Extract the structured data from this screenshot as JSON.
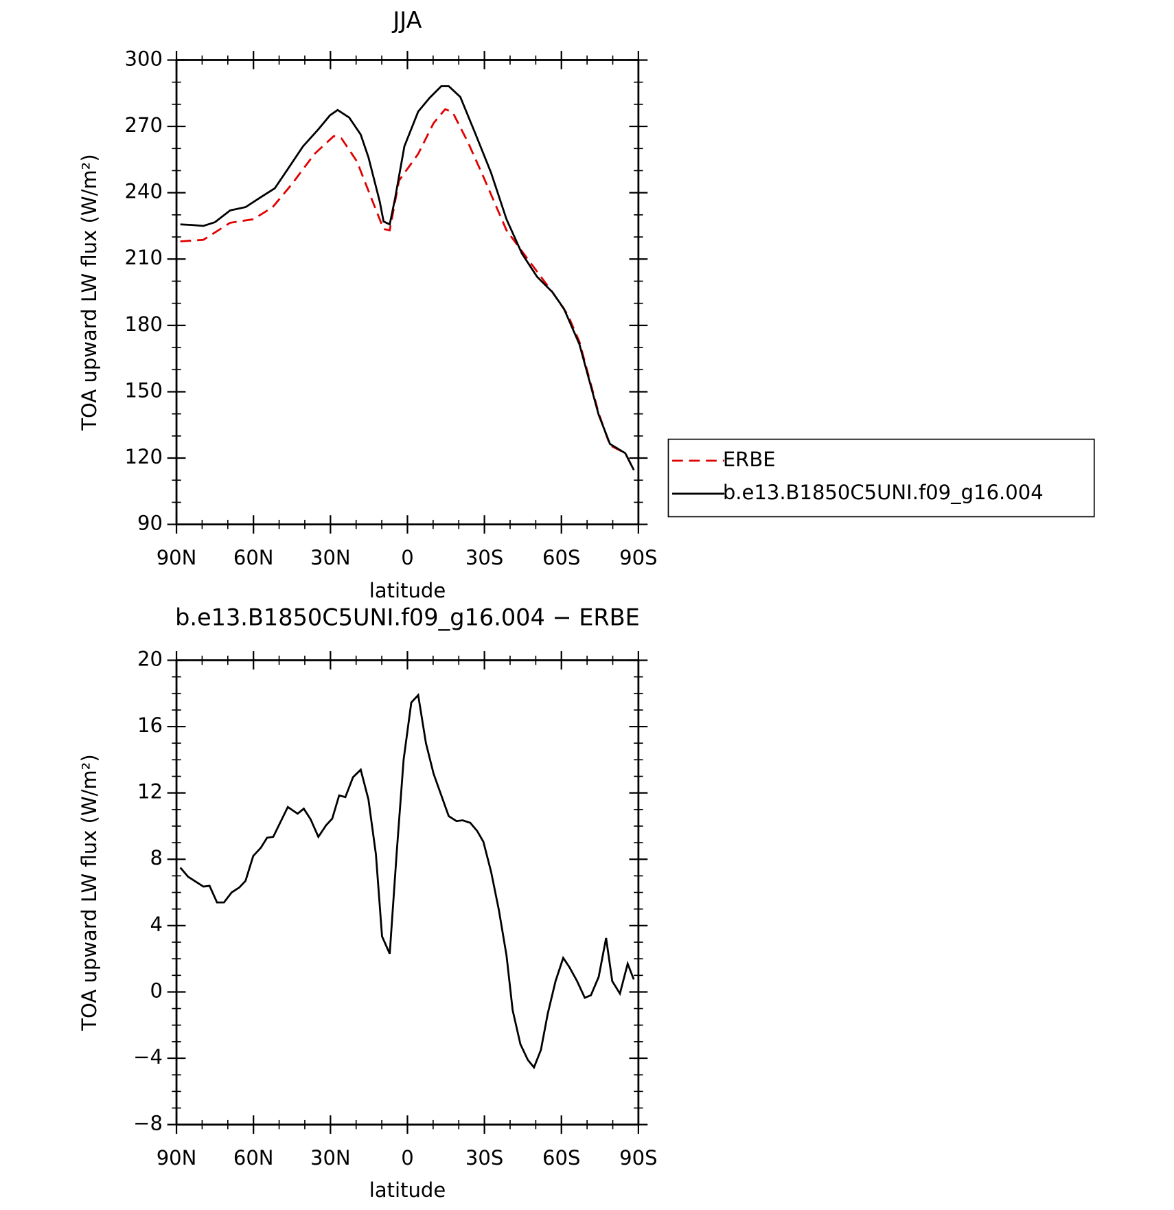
{
  "chart_data": [
    {
      "type": "line",
      "title": "JJA",
      "xlabel": "latitude",
      "ylabel": "TOA upward LW flux (W/m²)",
      "xlim": [
        90,
        -90
      ],
      "xticks": [
        {
          "value": 90,
          "label": "90N"
        },
        {
          "value": 60,
          "label": "60N"
        },
        {
          "value": 30,
          "label": "30N"
        },
        0,
        {
          "value": -30,
          "label": "30S"
        },
        {
          "value": -60,
          "label": "60S"
        },
        {
          "value": -90,
          "label": "90S"
        }
      ],
      "ylim": [
        90,
        300
      ],
      "yticks": [
        90,
        120,
        150,
        180,
        210,
        240,
        270,
        300
      ],
      "legend": true,
      "series": [
        {
          "name": "ERBE",
          "color": "#e00000",
          "dashed": true,
          "x": [
            88.5,
            79.5,
            69.1,
            60.1,
            52.6,
            45.1,
            36.2,
            28.7,
            25.7,
            19.7,
            13.8,
            9.3,
            6.9,
            3.3,
            -4.2,
            -10.2,
            -14.7,
            -17.6,
            -23.6,
            -29.6,
            -38.6,
            -47.5,
            -56.5,
            -62.5,
            -67,
            -74.5,
            -78.9,
            -84.9,
            -88.2
          ],
          "values": [
            218,
            218.7,
            226.4,
            228,
            233.4,
            243.8,
            257.6,
            265.6,
            264.6,
            254.2,
            236.8,
            223.6,
            223,
            245.5,
            257.6,
            271.5,
            277.8,
            276.4,
            262.8,
            247.2,
            223,
            209,
            195,
            184.8,
            172.6,
            140.3,
            125.8,
            122.2,
            114.6
          ]
        },
        {
          "name": "b.e13.B1850C5UNI.f09_g16.004",
          "color": "#000000",
          "dashed": false,
          "x": [
            88.5,
            84,
            79.5,
            75,
            69.1,
            63.1,
            57.1,
            51.7,
            46.6,
            40.7,
            34.7,
            30.2,
            27.2,
            22.7,
            18.2,
            15.2,
            10.8,
            9.3,
            6.9,
            4.8,
            1.2,
            -4.2,
            -8.7,
            -13.2,
            -16.1,
            -20.6,
            -26.6,
            -32.6,
            -38.6,
            -44.6,
            -50.5,
            -56.5,
            -61,
            -67,
            -74.5,
            -78.9,
            -84.9,
            -88.2
          ],
          "values": [
            225.7,
            225.4,
            225,
            226.7,
            232,
            233.5,
            238,
            242,
            250.7,
            261,
            268.7,
            275,
            277.4,
            274,
            266.3,
            256,
            236,
            227,
            225.7,
            237.5,
            261,
            276.7,
            283,
            288.2,
            288.2,
            283.3,
            266.3,
            249,
            228,
            212.5,
            202,
            195,
            187.5,
            171.5,
            139.6,
            126.4,
            122.2,
            114.6
          ]
        }
      ]
    },
    {
      "type": "line",
      "title": "b.e13.B1850C5UNI.f09_g16.004 − ERBE",
      "xlabel": "latitude",
      "ylabel": "TOA upward LW flux (W/m²)",
      "xlim": [
        90,
        -90
      ],
      "xticks": [
        {
          "value": 90,
          "label": "90N"
        },
        {
          "value": 60,
          "label": "60N"
        },
        {
          "value": 30,
          "label": "30N"
        },
        0,
        {
          "value": -30,
          "label": "30S"
        },
        {
          "value": -60,
          "label": "60S"
        },
        {
          "value": -90,
          "label": "90S"
        }
      ],
      "ylim": [
        -8,
        20
      ],
      "yticks": [
        {
          "value": -8,
          "label": "−8"
        },
        {
          "value": -4,
          "label": "−4"
        },
        0,
        4,
        8,
        12,
        16,
        20
      ],
      "series": [
        {
          "color": "#000000",
          "dashed": false,
          "x": [
            88.5,
            85.5,
            79.5,
            77.1,
            74.2,
            71.5,
            68.5,
            65.5,
            63.1,
            60.1,
            57.1,
            54.7,
            52.3,
            46.6,
            42.8,
            40.4,
            37.7,
            34.7,
            31.7,
            29.3,
            26.6,
            24.2,
            21.2,
            18.2,
            15.2,
            12.3,
            9.9,
            6.9,
            4.2,
            1.5,
            -1.5,
            -4.2,
            -7.2,
            -10.2,
            -16.1,
            -19.1,
            -21.5,
            -24.5,
            -27.2,
            -29.6,
            -32.6,
            -35.6,
            -38.6,
            -41,
            -44,
            -46.9,
            -49.3,
            -52,
            -54.7,
            -57.7,
            -60.7,
            -63.1,
            -66.1,
            -69.1,
            -71.5,
            -74.5,
            -77.4,
            -79.8,
            -82.8,
            -85.8,
            -88.2
          ],
          "values": [
            7.5,
            6.95,
            6.35,
            6.4,
            5.4,
            5.4,
            6.0,
            6.3,
            6.7,
            8.2,
            8.7,
            9.3,
            9.35,
            11.15,
            10.75,
            11.05,
            10.4,
            9.35,
            10.05,
            10.45,
            11.85,
            11.75,
            12.95,
            13.4,
            11.6,
            8.3,
            3.35,
            2.3,
            8.4,
            14.0,
            17.45,
            17.9,
            15.0,
            13.15,
            10.6,
            10.3,
            10.35,
            10.2,
            9.7,
            9.05,
            7.25,
            4.95,
            2.2,
            -1.1,
            -3.15,
            -4.1,
            -4.55,
            -3.5,
            -1.3,
            0.65,
            2.05,
            1.5,
            0.65,
            -0.35,
            -0.2,
            0.9,
            3.25,
            0.65,
            -0.1,
            1.7,
            0.75
          ]
        }
      ]
    }
  ]
}
